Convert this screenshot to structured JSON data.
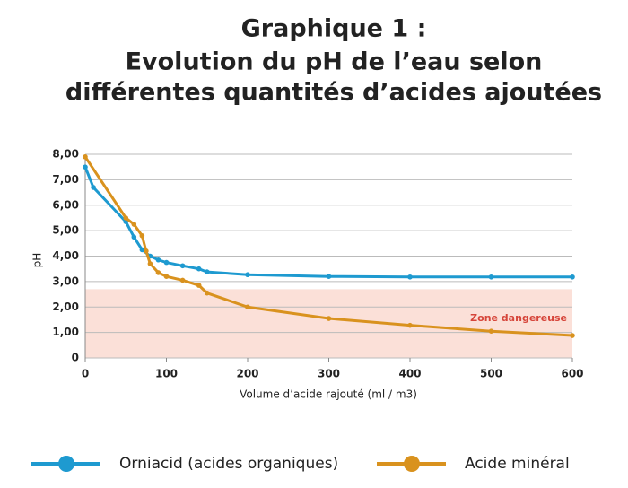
{
  "chart_data": {
    "type": "line",
    "title": [
      "Graphique 1 :",
      "Evolution du pH de l’eau selon",
      "différentes quantités d’acides ajoutées"
    ],
    "x_label": "Volume d’acide rajouté (ml / m3)",
    "y_label": "pH",
    "xlim": [
      0,
      600
    ],
    "xticks": [
      0,
      100,
      200,
      300,
      400,
      500,
      600
    ],
    "ylim": [
      0,
      8
    ],
    "yticks": [
      0,
      {
        "value": 1,
        "label": "1,00"
      },
      {
        "value": 2,
        "label": "2,00"
      },
      {
        "value": 3,
        "label": "3,00"
      },
      {
        "value": 4,
        "label": "4,00"
      },
      {
        "value": 5,
        "label": "5,00"
      },
      {
        "value": 6,
        "label": "6,00"
      },
      {
        "value": 7,
        "label": "7,00"
      },
      {
        "value": 8,
        "label": "8,00"
      }
    ],
    "grid": true,
    "danger_zone": {
      "label": "Zone dangereuse",
      "range": [
        0,
        2.7
      ],
      "color": "#fbe0d8",
      "text_color": "#d6453a"
    },
    "series": [
      {
        "name": "Orniacid (acides organiques)",
        "color": "#1e9ad0",
        "x": [
          0,
          10,
          50,
          60,
          70,
          80,
          90,
          100,
          120,
          140,
          150,
          200,
          300,
          400,
          500,
          600
        ],
        "values": [
          7.5,
          6.7,
          5.35,
          4.75,
          4.25,
          4.0,
          3.85,
          3.75,
          3.62,
          3.5,
          3.38,
          3.27,
          3.2,
          3.18,
          3.18,
          3.18
        ]
      },
      {
        "name": "Acide minéral",
        "color": "#d9921e",
        "x": [
          0,
          50,
          60,
          70,
          75,
          80,
          90,
          100,
          120,
          140,
          150,
          200,
          300,
          400,
          500,
          600
        ],
        "values": [
          7.9,
          5.5,
          5.25,
          4.8,
          4.2,
          3.7,
          3.35,
          3.2,
          3.05,
          2.85,
          2.55,
          2.0,
          1.55,
          1.28,
          1.05,
          0.88
        ]
      }
    ]
  }
}
